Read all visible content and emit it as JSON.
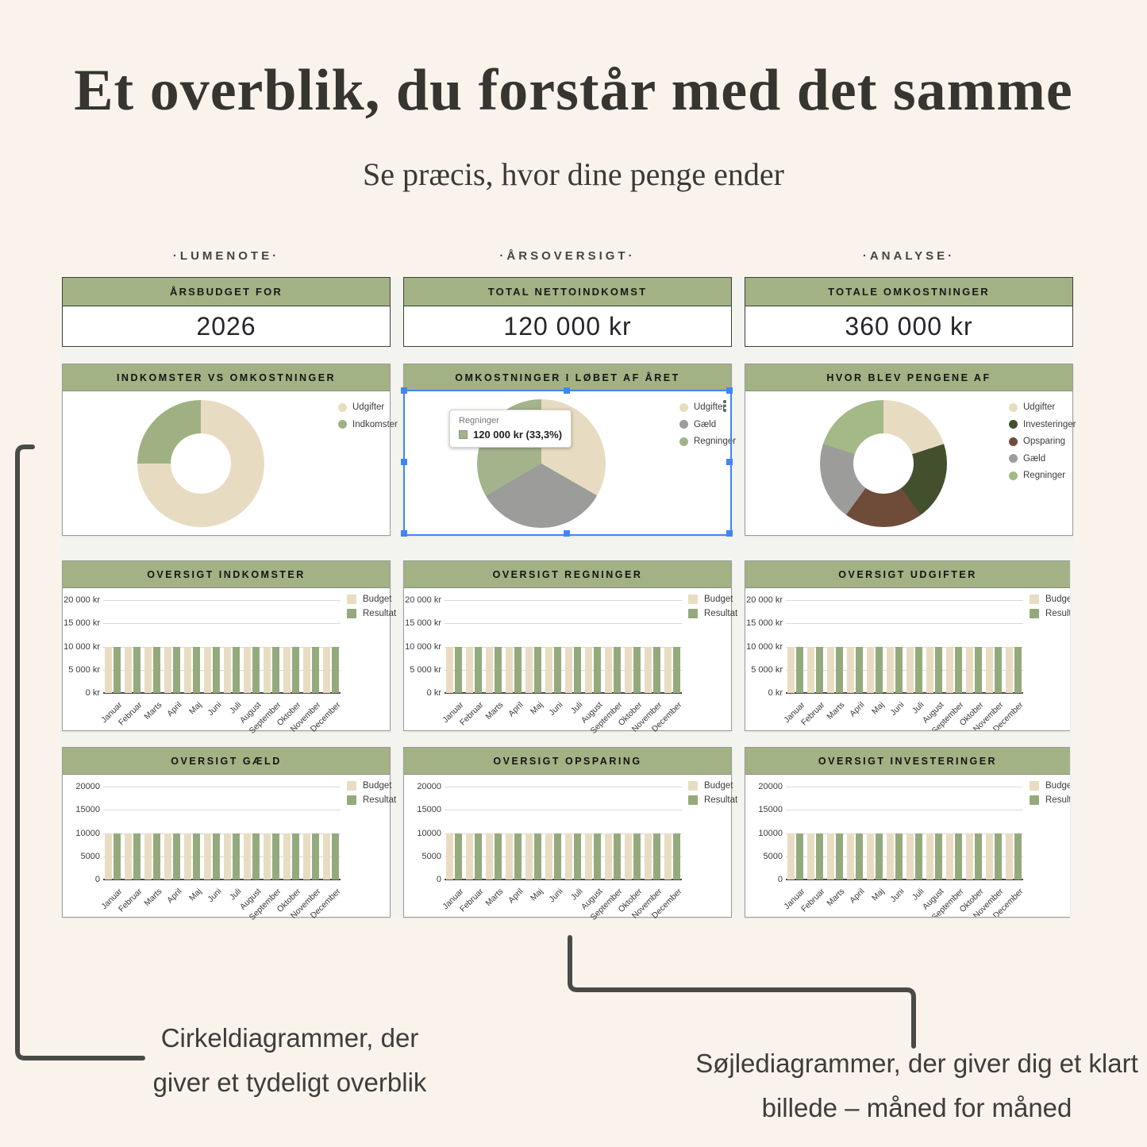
{
  "page": {
    "title": "Et overblik, du forstår med det samme",
    "subtitle": "Se præcis, hvor dine penge ender"
  },
  "sections": [
    "·LUMENOTE·",
    "·ÅRSOVERSIGT·",
    "·ANALYSE·"
  ],
  "summary_cards": [
    {
      "title": "ÅRSBUDGET FOR",
      "value": "2026"
    },
    {
      "title": "TOTAL NETTOINDKOMST",
      "value": "120 000 kr"
    },
    {
      "title": "TOTALE OMKOSTNINGER",
      "value": "360 000 kr"
    }
  ],
  "colors": {
    "header_green": "#a2b284",
    "beige": "#e7dcc1",
    "sage_green": "#9fb183",
    "gray": "#9c9c9a",
    "dark_green": "#42502e",
    "brown": "#6f4b39",
    "light_green": "#a4b888",
    "bar_budget": "#e8ddc2",
    "bar_resultat": "#94aa7d",
    "selection_blue": "#4285f4"
  },
  "chart_data": [
    {
      "type": "donut",
      "title": "INDKOMSTER VS OMKOSTNINGER",
      "labels": [
        "Udgifter",
        "Indkomster"
      ],
      "values": [
        75,
        25
      ],
      "colors": [
        "#e7dcc1",
        "#9fb183"
      ],
      "legend_position": "right"
    },
    {
      "type": "pie",
      "title": "OMKOSTNINGER I LØBET AF ÅRET",
      "labels": [
        "Udgifter",
        "Gæld",
        "Regninger"
      ],
      "values": [
        33.3,
        33.3,
        33.4
      ],
      "colors": [
        "#e7dcc1",
        "#9c9c9a",
        "#a3b38c"
      ],
      "legend_position": "right",
      "selected": true,
      "menu_icon": "kebab-menu-icon",
      "tooltip": {
        "label": "Regninger",
        "value": "120 000 kr (33,3%)",
        "swatch": "#a3b38c"
      }
    },
    {
      "type": "donut",
      "title": "HVOR BLEV PENGENE AF",
      "labels": [
        "Udgifter",
        "Investeringer",
        "Opsparing",
        "Gæld",
        "Regninger"
      ],
      "values": [
        20,
        20,
        20,
        20,
        20
      ],
      "colors": [
        "#e7dcc1",
        "#42502e",
        "#6f4b39",
        "#9c9c9a",
        "#a4b888"
      ],
      "legend_position": "right"
    },
    {
      "type": "bar",
      "title": "OVERSIGT INDKOMSTER",
      "categories": [
        "Januar",
        "Februar",
        "Marts",
        "April",
        "Maj",
        "Juni",
        "Juli",
        "August",
        "September",
        "Oktober",
        "November",
        "December"
      ],
      "series": [
        {
          "name": "Budget",
          "color": "#e8ddc2",
          "values": [
            10000,
            10000,
            10000,
            10000,
            10000,
            10000,
            10000,
            10000,
            10000,
            10000,
            10000,
            10000
          ]
        },
        {
          "name": "Resultat",
          "color": "#94aa7d",
          "values": [
            10000,
            10000,
            10000,
            10000,
            10000,
            10000,
            10000,
            10000,
            10000,
            10000,
            10000,
            10000
          ]
        }
      ],
      "ylim": [
        0,
        20000
      ],
      "ytick_labels": [
        "20 000 kr",
        "15 000 kr",
        "10 000 kr",
        "5 000 kr",
        "0 kr"
      ]
    },
    {
      "type": "bar",
      "title": "OVERSIGT REGNINGER",
      "categories": [
        "Januar",
        "Februar",
        "Marts",
        "April",
        "Maj",
        "Juni",
        "Juli",
        "August",
        "September",
        "Oktober",
        "November",
        "December"
      ],
      "series": [
        {
          "name": "Budget",
          "color": "#e8ddc2",
          "values": [
            10000,
            10000,
            10000,
            10000,
            10000,
            10000,
            10000,
            10000,
            10000,
            10000,
            10000,
            10000
          ]
        },
        {
          "name": "Resultat",
          "color": "#94aa7d",
          "values": [
            10000,
            10000,
            10000,
            10000,
            10000,
            10000,
            10000,
            10000,
            10000,
            10000,
            10000,
            10000
          ]
        }
      ],
      "ylim": [
        0,
        20000
      ],
      "ytick_labels": [
        "20 000 kr",
        "15 000 kr",
        "10 000 kr",
        "5 000 kr",
        "0 kr"
      ]
    },
    {
      "type": "bar",
      "title": "OVERSIGT UDGIFTER",
      "categories": [
        "Januar",
        "Februar",
        "Marts",
        "April",
        "Maj",
        "Juni",
        "Juli",
        "August",
        "September",
        "Oktober",
        "November",
        "December"
      ],
      "series": [
        {
          "name": "Budget",
          "color": "#e8ddc2",
          "values": [
            10000,
            10000,
            10000,
            10000,
            10000,
            10000,
            10000,
            10000,
            10000,
            10000,
            10000,
            10000
          ]
        },
        {
          "name": "Resultat",
          "color": "#94aa7d",
          "values": [
            10000,
            10000,
            10000,
            10000,
            10000,
            10000,
            10000,
            10000,
            10000,
            10000,
            10000,
            10000
          ]
        }
      ],
      "ylim": [
        0,
        20000
      ],
      "ytick_labels": [
        "20 000 kr",
        "15 000 kr",
        "10 000 kr",
        "5 000 kr",
        "0 kr"
      ],
      "clipped": true
    },
    {
      "type": "bar",
      "title": "OVERSIGT GÆLD",
      "categories": [
        "Januar",
        "Februar",
        "Marts",
        "April",
        "Maj",
        "Juni",
        "Juli",
        "August",
        "September",
        "Oktober",
        "November",
        "December"
      ],
      "series": [
        {
          "name": "Budget",
          "color": "#e8ddc2",
          "values": [
            10000,
            10000,
            10000,
            10000,
            10000,
            10000,
            10000,
            10000,
            10000,
            10000,
            10000,
            10000
          ]
        },
        {
          "name": "Resultat",
          "color": "#94aa7d",
          "values": [
            10000,
            10000,
            10000,
            10000,
            10000,
            10000,
            10000,
            10000,
            10000,
            10000,
            10000,
            10000
          ]
        }
      ],
      "ylim": [
        0,
        20000
      ],
      "ytick_labels": [
        "20000",
        "15000",
        "10000",
        "5000",
        "0"
      ]
    },
    {
      "type": "bar",
      "title": "OVERSIGT OPSPARING",
      "categories": [
        "Januar",
        "Februar",
        "Marts",
        "April",
        "Maj",
        "Juni",
        "Juli",
        "August",
        "September",
        "Oktober",
        "November",
        "December"
      ],
      "series": [
        {
          "name": "Budget",
          "color": "#e8ddc2",
          "values": [
            10000,
            10000,
            10000,
            10000,
            10000,
            10000,
            10000,
            10000,
            10000,
            10000,
            10000,
            10000
          ]
        },
        {
          "name": "Resultat",
          "color": "#94aa7d",
          "values": [
            10000,
            10000,
            10000,
            10000,
            10000,
            10000,
            10000,
            10000,
            10000,
            10000,
            10000,
            10000
          ]
        }
      ],
      "ylim": [
        0,
        20000
      ],
      "ytick_labels": [
        "20000",
        "15000",
        "10000",
        "5000",
        "0"
      ]
    },
    {
      "type": "bar",
      "title": "OVERSIGT INVESTERINGER",
      "categories": [
        "Januar",
        "Februar",
        "Marts",
        "April",
        "Maj",
        "Juni",
        "Juli",
        "August",
        "September",
        "Oktober",
        "November",
        "December"
      ],
      "series": [
        {
          "name": "Budget",
          "color": "#e8ddc2",
          "values": [
            10000,
            10000,
            10000,
            10000,
            10000,
            10000,
            10000,
            10000,
            10000,
            10000,
            10000,
            10000
          ]
        },
        {
          "name": "Resultat",
          "color": "#94aa7d",
          "values": [
            10000,
            10000,
            10000,
            10000,
            10000,
            10000,
            10000,
            10000,
            10000,
            10000,
            10000,
            10000
          ]
        }
      ],
      "ylim": [
        0,
        20000
      ],
      "ytick_labels": [
        "20000",
        "15000",
        "10000",
        "5000",
        "0"
      ],
      "clipped": true
    }
  ],
  "annotations": {
    "left": [
      "Cirkeldiagrammer, der",
      "giver et tydeligt overblik"
    ],
    "right": [
      "Søjlediagrammer, der giver dig et klart",
      "billede – måned for måned"
    ]
  }
}
